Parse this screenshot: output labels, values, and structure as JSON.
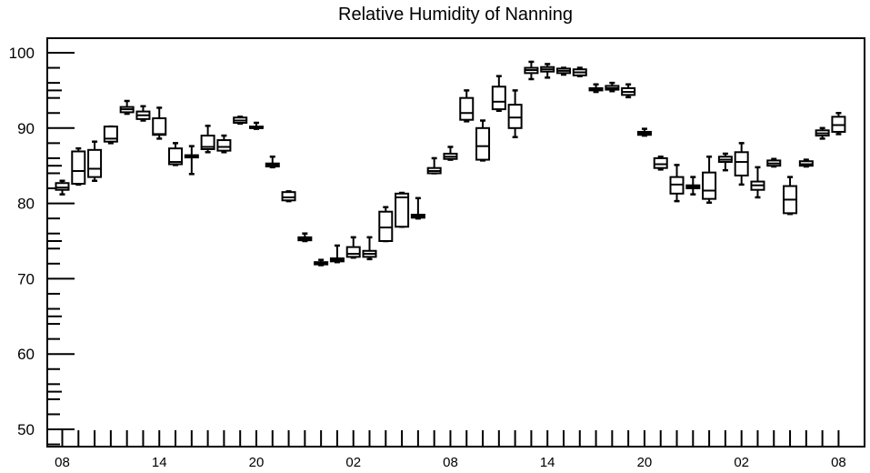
{
  "chart_data": {
    "type": "box",
    "title": "Relative Humidity of Nanning",
    "xlabel": "",
    "ylabel": "",
    "ylim": [
      48,
      102
    ],
    "yticks": [
      50,
      60,
      70,
      80,
      90,
      100
    ],
    "x_tick_labels": [
      "08",
      "14",
      "20",
      "02",
      "08",
      "14",
      "20",
      "02",
      "08"
    ],
    "x_tick_hours": [
      0,
      6,
      12,
      18,
      24,
      30,
      36,
      42,
      48
    ],
    "grid": false,
    "legend": "none",
    "boxes": [
      {
        "hour": 0,
        "min": 81.2,
        "q1": 81.8,
        "median": 82.1,
        "q3": 82.7,
        "max": 83.0
      },
      {
        "hour": 1,
        "min": 82.5,
        "q1": 82.6,
        "median": 84.3,
        "q3": 86.9,
        "max": 87.3
      },
      {
        "hour": 2,
        "min": 83.0,
        "q1": 83.5,
        "median": 84.6,
        "q3": 87.1,
        "max": 88.2
      },
      {
        "hour": 3,
        "min": 88.0,
        "q1": 88.2,
        "median": 88.6,
        "q3": 90.2,
        "max": 90.2
      },
      {
        "hour": 4,
        "min": 91.9,
        "q1": 92.1,
        "median": 92.5,
        "q3": 92.8,
        "max": 93.6
      },
      {
        "hour": 5,
        "min": 91.0,
        "q1": 91.2,
        "median": 91.7,
        "q3": 92.2,
        "max": 92.9
      },
      {
        "hour": 6,
        "min": 88.6,
        "q1": 89.1,
        "median": 89.2,
        "q3": 91.3,
        "max": 92.7
      },
      {
        "hour": 7,
        "min": 85.1,
        "q1": 85.2,
        "median": 85.5,
        "q3": 87.3,
        "max": 88.0
      },
      {
        "hour": 8,
        "min": 83.9,
        "q1": 86.1,
        "median": 86.2,
        "q3": 86.4,
        "max": 87.6
      },
      {
        "hour": 9,
        "min": 86.8,
        "q1": 87.2,
        "median": 87.5,
        "q3": 89.0,
        "max": 90.3
      },
      {
        "hour": 10,
        "min": 86.8,
        "q1": 87.0,
        "median": 87.5,
        "q3": 88.4,
        "max": 89.0
      },
      {
        "hour": 11,
        "min": 90.6,
        "q1": 90.7,
        "median": 91.0,
        "q3": 91.4,
        "max": 91.5
      },
      {
        "hour": 12,
        "min": 89.9,
        "q1": 90.0,
        "median": 90.0,
        "q3": 90.2,
        "max": 90.7
      },
      {
        "hour": 13,
        "min": 84.8,
        "q1": 84.9,
        "median": 85.1,
        "q3": 85.3,
        "max": 86.2
      },
      {
        "hour": 14,
        "min": 80.3,
        "q1": 80.4,
        "median": 80.8,
        "q3": 81.5,
        "max": 81.6
      },
      {
        "hour": 15,
        "min": 75.0,
        "q1": 75.1,
        "median": 75.3,
        "q3": 75.5,
        "max": 76.0
      },
      {
        "hour": 16,
        "min": 71.8,
        "q1": 71.9,
        "median": 72.0,
        "q3": 72.2,
        "max": 72.5
      },
      {
        "hour": 17,
        "min": 72.2,
        "q1": 72.3,
        "median": 72.5,
        "q3": 72.7,
        "max": 74.4
      },
      {
        "hour": 18,
        "min": 72.8,
        "q1": 72.9,
        "median": 73.3,
        "q3": 74.2,
        "max": 75.5
      },
      {
        "hour": 19,
        "min": 72.6,
        "q1": 72.9,
        "median": 73.3,
        "q3": 73.7,
        "max": 75.5
      },
      {
        "hour": 20,
        "min": 75.0,
        "q1": 75.0,
        "median": 76.8,
        "q3": 78.9,
        "max": 79.5
      },
      {
        "hour": 21,
        "min": 76.9,
        "q1": 76.9,
        "median": 80.8,
        "q3": 81.3,
        "max": 81.4
      },
      {
        "hour": 22,
        "min": 78.0,
        "q1": 78.1,
        "median": 78.3,
        "q3": 78.5,
        "max": 80.7
      },
      {
        "hour": 23,
        "min": 84.0,
        "q1": 84.0,
        "median": 84.3,
        "q3": 84.7,
        "max": 86.0
      },
      {
        "hour": 24,
        "min": 85.8,
        "q1": 85.9,
        "median": 86.2,
        "q3": 86.6,
        "max": 87.5
      },
      {
        "hour": 25,
        "min": 90.9,
        "q1": 91.1,
        "median": 92.0,
        "q3": 94.0,
        "max": 95.0
      },
      {
        "hour": 26,
        "min": 85.7,
        "q1": 85.8,
        "median": 87.6,
        "q3": 90.0,
        "max": 91.0
      },
      {
        "hour": 27,
        "min": 92.3,
        "q1": 92.5,
        "median": 93.5,
        "q3": 95.5,
        "max": 96.9
      },
      {
        "hour": 28,
        "min": 88.8,
        "q1": 90.0,
        "median": 91.4,
        "q3": 93.1,
        "max": 95.0
      },
      {
        "hour": 29,
        "min": 96.5,
        "q1": 97.3,
        "median": 97.7,
        "q3": 98.0,
        "max": 98.8
      },
      {
        "hour": 30,
        "min": 96.7,
        "q1": 97.5,
        "median": 97.8,
        "q3": 98.1,
        "max": 98.5
      },
      {
        "hour": 31,
        "min": 97.1,
        "q1": 97.3,
        "median": 97.6,
        "q3": 97.9,
        "max": 98.0
      },
      {
        "hour": 32,
        "min": 96.9,
        "q1": 97.0,
        "median": 97.4,
        "q3": 97.8,
        "max": 98.0
      },
      {
        "hour": 33,
        "min": 94.8,
        "q1": 95.0,
        "median": 95.1,
        "q3": 95.3,
        "max": 95.8
      },
      {
        "hour": 34,
        "min": 94.9,
        "q1": 95.1,
        "median": 95.3,
        "q3": 95.6,
        "max": 96.0
      },
      {
        "hour": 35,
        "min": 94.1,
        "q1": 94.4,
        "median": 94.8,
        "q3": 95.3,
        "max": 95.8
      },
      {
        "hour": 36,
        "min": 89.0,
        "q1": 89.1,
        "median": 89.3,
        "q3": 89.5,
        "max": 89.9
      },
      {
        "hour": 37,
        "min": 84.5,
        "q1": 84.7,
        "median": 85.2,
        "q3": 86.0,
        "max": 86.2
      },
      {
        "hour": 38,
        "min": 80.3,
        "q1": 81.3,
        "median": 82.5,
        "q3": 83.5,
        "max": 85.1
      },
      {
        "hour": 39,
        "min": 81.2,
        "q1": 82.0,
        "median": 82.2,
        "q3": 82.4,
        "max": 83.5
      },
      {
        "hour": 40,
        "min": 80.1,
        "q1": 80.6,
        "median": 81.7,
        "q3": 84.1,
        "max": 86.2
      },
      {
        "hour": 41,
        "min": 84.4,
        "q1": 85.5,
        "median": 85.8,
        "q3": 86.2,
        "max": 86.6
      },
      {
        "hour": 42,
        "min": 82.5,
        "q1": 83.7,
        "median": 85.5,
        "q3": 86.8,
        "max": 88.0
      },
      {
        "hour": 43,
        "min": 80.8,
        "q1": 81.8,
        "median": 82.4,
        "q3": 82.9,
        "max": 84.8
      },
      {
        "hour": 44,
        "min": 84.9,
        "q1": 85.0,
        "median": 85.3,
        "q3": 85.7,
        "max": 85.9
      },
      {
        "hour": 45,
        "min": 78.6,
        "q1": 78.7,
        "median": 80.5,
        "q3": 82.3,
        "max": 83.5
      },
      {
        "hour": 46,
        "min": 84.9,
        "q1": 85.0,
        "median": 85.2,
        "q3": 85.6,
        "max": 85.8
      },
      {
        "hour": 47,
        "min": 88.6,
        "q1": 89.0,
        "median": 89.3,
        "q3": 89.7,
        "max": 90.0
      },
      {
        "hour": 48,
        "min": 89.2,
        "q1": 89.5,
        "median": 90.4,
        "q3": 91.5,
        "max": 92.0
      }
    ]
  }
}
